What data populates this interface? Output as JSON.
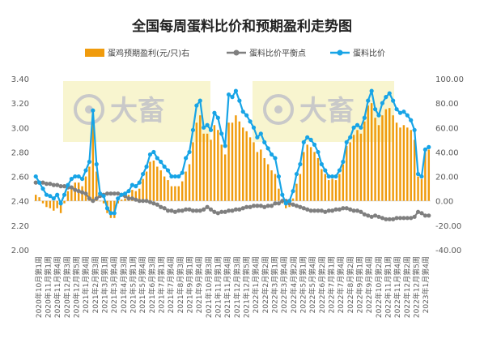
{
  "chart_data": {
    "type": "bar+line",
    "title": "全国每周蛋料比价和预期盈利走势图",
    "legend": [
      {
        "key": "profit",
        "label": "蛋鸡预期盈利(元/只)右",
        "color": "#F09B0C"
      },
      {
        "key": "breakeven",
        "label": "蛋料比价平衡点",
        "color": "#7F7F7F"
      },
      {
        "key": "ratio",
        "label": "蛋料比价",
        "color": "#17A4E6"
      }
    ],
    "y_left": {
      "min": 2.0,
      "max": 3.4,
      "ticks": [
        "2.00",
        "2.20",
        "2.40",
        "2.60",
        "2.80",
        "3.00",
        "3.20",
        "3.40"
      ]
    },
    "y_right": {
      "min": -40,
      "max": 100,
      "ticks": [
        "-40.00",
        "-20.00",
        "0.00",
        "20.00",
        "40.00",
        "60.00",
        "80.00",
        "100.00"
      ]
    },
    "x_tick_labels": [
      "2020年10月第1周",
      "2020年11月第1周",
      "2020年11月第4周",
      "2020年12月第3周",
      "2020年12月第5周",
      "2021年1月第4周",
      "2021年2月第3周",
      "2021年3月第1周",
      "2021年3月第4周",
      "2021年4月第3周",
      "2021年5月第1周",
      "2021年5月第4周",
      "2021年6月第3周",
      "2021年7月第1周",
      "2021年7月第4周",
      "2021年8月第3周",
      "2021年9月第1周",
      "2021年9月第4周",
      "2021年10月第3周",
      "2021年11月第1周",
      "2021年11月第4周",
      "2021年12月第3周",
      "2021年12月第5周",
      "2022年1月第4周",
      "2022年2月第2周",
      "2022年3月第1周",
      "2022年3月第4周",
      "2022年4月第2周",
      "2022年5月第1周",
      "2022年5月第4周",
      "2022年6月第2周",
      "2022年7月第1周",
      "2022年7月第4周",
      "2022年8月第2周",
      "2022年9月第1周",
      "2022年9月第4周",
      "2022年10月第2周",
      "2022年11月第1周",
      "2022年11月第4周",
      "2022年12月第2周",
      "2022年12月第5周",
      "2023年1月第4周"
    ],
    "watermark": "大畜",
    "series": [
      {
        "name": "蛋料比价",
        "axis": "left",
        "values": [
          2.6,
          2.55,
          2.5,
          2.45,
          2.44,
          2.42,
          2.45,
          2.38,
          2.45,
          2.53,
          2.58,
          2.6,
          2.6,
          2.58,
          2.65,
          2.72,
          3.14,
          2.7,
          2.46,
          2.44,
          2.34,
          2.3,
          2.3,
          2.42,
          2.45,
          2.46,
          2.48,
          2.53,
          2.52,
          2.55,
          2.62,
          2.68,
          2.78,
          2.8,
          2.75,
          2.72,
          2.68,
          2.65,
          2.6,
          2.6,
          2.6,
          2.63,
          2.75,
          2.8,
          2.98,
          3.18,
          3.22,
          3.0,
          3.02,
          2.98,
          3.12,
          3.08,
          2.95,
          2.85,
          3.27,
          3.25,
          3.3,
          3.22,
          3.13,
          3.1,
          3.05,
          3.0,
          2.92,
          2.95,
          2.88,
          2.83,
          2.78,
          2.75,
          2.6,
          2.45,
          2.38,
          2.4,
          2.48,
          2.62,
          2.7,
          2.88,
          2.92,
          2.9,
          2.86,
          2.8,
          2.7,
          2.65,
          2.6,
          2.6,
          2.6,
          2.65,
          2.72,
          2.88,
          2.92,
          3.0,
          3.02,
          3.0,
          3.08,
          3.22,
          3.3,
          3.15,
          3.1,
          3.2,
          3.25,
          3.28,
          3.22,
          3.15,
          3.12,
          3.13,
          3.1,
          3.06,
          2.98,
          2.62,
          2.6,
          2.82,
          2.84
        ]
      },
      {
        "name": "蛋料比价平衡点",
        "axis": "left",
        "values": [
          2.55,
          2.55,
          2.55,
          2.54,
          2.54,
          2.53,
          2.53,
          2.52,
          2.52,
          2.51,
          2.51,
          2.49,
          2.48,
          2.47,
          2.46,
          2.42,
          2.4,
          2.42,
          2.44,
          2.45,
          2.46,
          2.46,
          2.46,
          2.46,
          2.45,
          2.44,
          2.42,
          2.42,
          2.41,
          2.4,
          2.4,
          2.4,
          2.39,
          2.38,
          2.37,
          2.35,
          2.34,
          2.32,
          2.32,
          2.31,
          2.32,
          2.32,
          2.33,
          2.33,
          2.32,
          2.32,
          2.32,
          2.33,
          2.35,
          2.33,
          2.31,
          2.3,
          2.31,
          2.31,
          2.32,
          2.32,
          2.33,
          2.33,
          2.34,
          2.35,
          2.35,
          2.36,
          2.36,
          2.36,
          2.35,
          2.36,
          2.36,
          2.38,
          2.38,
          2.4,
          2.4,
          2.38,
          2.37,
          2.36,
          2.35,
          2.34,
          2.33,
          2.32,
          2.32,
          2.32,
          2.32,
          2.31,
          2.32,
          2.32,
          2.33,
          2.33,
          2.34,
          2.34,
          2.33,
          2.32,
          2.32,
          2.31,
          2.29,
          2.28,
          2.27,
          2.28,
          2.27,
          2.26,
          2.25,
          2.25,
          2.25,
          2.26,
          2.26,
          2.26,
          2.26,
          2.26,
          2.27,
          2.31,
          2.3,
          2.28,
          2.28
        ]
      },
      {
        "name": "蛋鸡预期盈利(元/只)右",
        "axis": "right",
        "values": [
          5,
          3,
          -2,
          -5,
          -6,
          -8,
          -6,
          -10,
          -2,
          8,
          12,
          15,
          15,
          12,
          20,
          28,
          65,
          24,
          0,
          -2,
          -10,
          -14,
          -14,
          -2,
          1,
          2,
          5,
          9,
          8,
          10,
          18,
          24,
          32,
          33,
          28,
          25,
          20,
          17,
          12,
          12,
          12,
          16,
          24,
          30,
          48,
          64,
          70,
          55,
          55,
          50,
          62,
          58,
          46,
          38,
          64,
          64,
          70,
          65,
          60,
          57,
          52,
          48,
          40,
          42,
          35,
          30,
          25,
          22,
          10,
          -2,
          -6,
          -5,
          2,
          14,
          22,
          40,
          46,
          44,
          40,
          35,
          26,
          22,
          17,
          18,
          17,
          22,
          30,
          45,
          48,
          54,
          58,
          55,
          65,
          78,
          80,
          68,
          62,
          70,
          75,
          76,
          70,
          64,
          60,
          62,
          60,
          58,
          50,
          20,
          18,
          40,
          42
        ]
      }
    ]
  }
}
